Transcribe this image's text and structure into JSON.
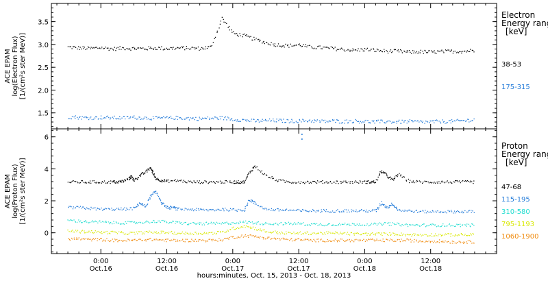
{
  "chart_data": [
    {
      "type": "scatter",
      "ylabel_lines": [
        "ACE EPAM",
        "log(Electron Flux)",
        "[1/(cm²s ster MeV)]"
      ],
      "ylim": [
        1.15,
        3.9
      ],
      "yticks": [
        1.5,
        2.0,
        2.5,
        3.0,
        3.5
      ],
      "ytick_labels": [
        "1.5",
        "2.0",
        "2.5",
        "3.0",
        "3.5"
      ],
      "legend_title_lines": [
        "Electron",
        "Energy ranges",
        "[keV]"
      ],
      "series": [
        {
          "name": "38-53",
          "color": "#000000",
          "x": [
            0,
            2,
            4,
            6,
            8,
            10,
            12,
            14,
            16,
            18,
            20,
            22,
            24,
            26,
            28,
            30,
            32,
            34,
            36,
            38,
            40,
            42,
            44,
            46,
            48,
            50,
            52,
            54,
            56,
            58,
            60,
            62,
            64,
            66,
            68,
            70,
            72,
            74
          ],
          "y": [
            2.95,
            2.93,
            2.92,
            2.94,
            2.91,
            2.93,
            2.92,
            2.92,
            2.93,
            2.92,
            2.93,
            2.93,
            2.92,
            2.95,
            3.58,
            3.25,
            3.2,
            3.12,
            3.05,
            3.0,
            2.98,
            3.0,
            2.95,
            2.94,
            2.92,
            2.9,
            2.88,
            2.9,
            2.88,
            2.86,
            2.86,
            2.84,
            2.85,
            2.84,
            2.85,
            2.86,
            2.86,
            2.88
          ]
        },
        {
          "name": "175-315",
          "color": "#1e78d8",
          "x": [
            0,
            2,
            4,
            6,
            8,
            10,
            12,
            14,
            16,
            18,
            20,
            22,
            24,
            26,
            28,
            30,
            32,
            34,
            36,
            38,
            40,
            42,
            44,
            46,
            48,
            50,
            52,
            54,
            56,
            58,
            60,
            62,
            64,
            66,
            68,
            70,
            72,
            74
          ],
          "y": [
            1.42,
            1.41,
            1.4,
            1.41,
            1.4,
            1.4,
            1.41,
            1.4,
            1.39,
            1.4,
            1.4,
            1.39,
            1.38,
            1.39,
            1.4,
            1.37,
            1.35,
            1.33,
            1.34,
            1.34,
            1.33,
            1.33,
            1.34,
            1.32,
            1.33,
            1.32,
            1.33,
            1.32,
            1.31,
            1.32,
            1.31,
            1.32,
            1.31,
            1.31,
            1.32,
            1.32,
            1.34,
            1.36
          ]
        }
      ]
    },
    {
      "type": "scatter",
      "ylabel_lines": [
        "ACE EPAM",
        "log(Proton Flux)",
        "[1/(cm²s ster MeV)]"
      ],
      "ylim": [
        -1.3,
        6.5
      ],
      "yticks": [
        0,
        2,
        4,
        6
      ],
      "ytick_labels": [
        "0",
        "2",
        "4",
        "6"
      ],
      "legend_title_lines": [
        "Proton",
        "Energy ranges",
        "[keV]"
      ],
      "xticks": [
        6,
        18,
        30,
        42,
        54,
        66
      ],
      "xtick_labels": [
        [
          "0:00",
          "Oct.16"
        ],
        [
          "12:00",
          "Oct.16"
        ],
        [
          "0:00",
          "Oct.17"
        ],
        [
          "12:00",
          "Oct.17"
        ],
        [
          "0:00",
          "Oct.18"
        ],
        [
          "12:00",
          "Oct.18"
        ]
      ],
      "xlabel": "hours:minutes, Oct. 15, 2013 - Oct. 18, 2013",
      "xlim": [
        -3,
        78
      ],
      "series": [
        {
          "name": "47-68",
          "color": "#000000",
          "x": [
            0,
            2,
            4,
            6,
            8,
            9,
            10,
            11,
            11.5,
            12,
            13,
            14,
            15,
            15.5,
            16,
            17,
            18,
            20,
            22,
            24,
            26,
            28,
            30,
            31,
            32,
            33,
            34,
            36,
            38,
            40,
            42,
            44,
            46,
            48,
            50,
            52,
            54,
            55,
            56,
            57,
            58,
            59,
            60,
            62,
            64,
            66,
            68,
            70,
            72,
            74
          ],
          "y": [
            3.2,
            3.2,
            3.2,
            3.2,
            3.2,
            3.2,
            3.25,
            3.4,
            3.55,
            3.3,
            3.6,
            3.8,
            4.1,
            3.7,
            3.4,
            3.3,
            3.25,
            3.3,
            3.2,
            3.2,
            3.2,
            3.2,
            3.2,
            3.2,
            3.2,
            3.8,
            4.2,
            3.6,
            3.3,
            3.2,
            3.2,
            3.2,
            3.2,
            3.2,
            3.2,
            3.2,
            3.2,
            3.2,
            3.2,
            3.9,
            3.6,
            3.3,
            3.7,
            3.25,
            3.2,
            3.2,
            3.2,
            3.2,
            3.2,
            3.2
          ]
        },
        {
          "name": "115-195",
          "color": "#1e78d8",
          "x": [
            0,
            2,
            4,
            6,
            8,
            10,
            12,
            13,
            14,
            15,
            16,
            17,
            18,
            19,
            20,
            22,
            24,
            26,
            28,
            30,
            32,
            33,
            34,
            36,
            38,
            40,
            42,
            44,
            46,
            48,
            50,
            52,
            54,
            56,
            57,
            58,
            59,
            60,
            62,
            64,
            66,
            68,
            70,
            72,
            74
          ],
          "y": [
            1.6,
            1.6,
            1.55,
            1.5,
            1.5,
            1.5,
            1.55,
            1.9,
            1.65,
            2.3,
            2.6,
            1.9,
            1.6,
            1.6,
            1.5,
            1.5,
            1.45,
            1.45,
            1.5,
            1.45,
            1.45,
            2.1,
            1.85,
            1.5,
            1.45,
            1.45,
            1.4,
            1.4,
            1.4,
            1.4,
            1.4,
            1.4,
            1.4,
            1.4,
            1.9,
            1.6,
            1.85,
            1.45,
            1.4,
            1.35,
            1.35,
            1.35,
            1.35,
            1.35,
            1.35
          ]
        },
        {
          "name": "310-580",
          "color": "#22ddd0",
          "x": [
            0,
            2,
            4,
            6,
            8,
            10,
            12,
            14,
            16,
            18,
            20,
            22,
            24,
            26,
            28,
            30,
            32,
            34,
            36,
            38,
            40,
            42,
            44,
            46,
            48,
            50,
            52,
            54,
            56,
            58,
            60,
            62,
            64,
            66,
            68,
            70,
            72,
            74
          ],
          "y": [
            0.8,
            0.75,
            0.7,
            0.7,
            0.65,
            0.65,
            0.65,
            0.7,
            0.75,
            0.7,
            0.65,
            0.6,
            0.6,
            0.6,
            0.6,
            0.65,
            0.7,
            0.65,
            0.6,
            0.6,
            0.6,
            0.6,
            0.55,
            0.55,
            0.55,
            0.55,
            0.55,
            0.55,
            0.55,
            0.6,
            0.55,
            0.5,
            0.5,
            0.5,
            0.5,
            0.5,
            0.5,
            0.5
          ]
        },
        {
          "name": "795-1193",
          "color": "#d8e800",
          "x": [
            0,
            2,
            4,
            6,
            8,
            10,
            12,
            14,
            16,
            18,
            20,
            22,
            24,
            26,
            28,
            30,
            32,
            34,
            36,
            38,
            40,
            42,
            44,
            46,
            48,
            50,
            52,
            54,
            56,
            58,
            60,
            62,
            64,
            66,
            68,
            70,
            72,
            74
          ],
          "y": [
            0.15,
            0.1,
            0.1,
            0.05,
            0.05,
            0.0,
            0.0,
            0.05,
            0.05,
            0.05,
            0.0,
            0.0,
            0.0,
            0.0,
            0.05,
            0.3,
            0.45,
            0.3,
            0.1,
            0.05,
            0.0,
            0.0,
            0.0,
            0.0,
            0.0,
            0.0,
            -0.05,
            -0.05,
            -0.05,
            -0.05,
            -0.05,
            -0.1,
            -0.1,
            -0.1,
            -0.1,
            -0.1,
            -0.1,
            -0.1
          ]
        },
        {
          "name": "1060-1900",
          "color": "#f08c10",
          "x": [
            0,
            2,
            4,
            6,
            8,
            10,
            12,
            14,
            16,
            18,
            20,
            22,
            24,
            26,
            28,
            30,
            32,
            34,
            36,
            38,
            40,
            42,
            44,
            46,
            48,
            50,
            52,
            54,
            56,
            58,
            60,
            62,
            64,
            66,
            68,
            70,
            72,
            74
          ],
          "y": [
            -0.35,
            -0.35,
            -0.4,
            -0.4,
            -0.45,
            -0.45,
            -0.45,
            -0.4,
            -0.4,
            -0.45,
            -0.45,
            -0.45,
            -0.45,
            -0.45,
            -0.4,
            -0.25,
            -0.15,
            -0.2,
            -0.3,
            -0.35,
            -0.4,
            -0.4,
            -0.45,
            -0.45,
            -0.45,
            -0.45,
            -0.45,
            -0.45,
            -0.45,
            -0.45,
            -0.45,
            -0.45,
            -0.5,
            -0.5,
            -0.5,
            -0.55,
            -0.55,
            -0.55
          ]
        }
      ],
      "annotations": [
        {
          "x": 42.5,
          "y": 6.2,
          "color": "#1e78d8"
        },
        {
          "x": 42.5,
          "y": 5.9,
          "color": "#1e78d8"
        }
      ]
    }
  ]
}
